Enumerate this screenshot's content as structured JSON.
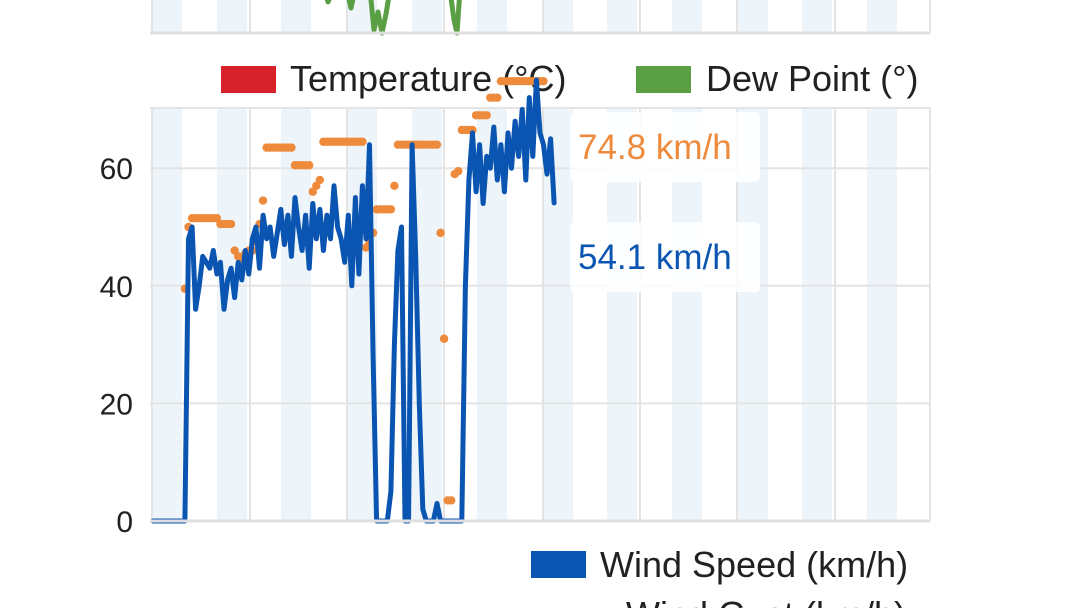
{
  "legend_top": {
    "items": [
      {
        "label": "Temperature (°C)",
        "color": "#d7222c"
      },
      {
        "label": "Dew Point (°)",
        "color": "#5b9f45"
      }
    ]
  },
  "legend_bottom": {
    "items": [
      {
        "label": "Wind Speed (km/h)",
        "color": "#0b55b2"
      },
      {
        "label": "Wind Gust (km/h)",
        "color": "#ee8a3c"
      }
    ]
  },
  "chart_data": {
    "type": "line",
    "ylim": [
      0,
      75
    ],
    "yticks": [
      0,
      20,
      40,
      60
    ],
    "grid": true,
    "legend_placement": "bottom-right",
    "series": [
      {
        "name": "Wind Speed (km/h)",
        "color": "#0b55b2",
        "style": "line",
        "x": [
          0,
          4,
          9,
          10,
          11,
          12,
          13,
          14,
          15,
          16,
          17,
          18,
          19,
          20,
          21,
          22,
          23,
          24,
          25,
          26,
          27,
          28,
          29,
          30,
          31,
          32,
          33,
          34,
          35,
          36,
          37,
          38,
          39,
          40,
          41,
          42,
          43,
          44,
          45,
          46,
          47,
          48,
          49,
          50,
          51,
          52,
          53,
          54,
          55,
          56,
          57,
          58,
          59,
          60,
          61,
          62,
          63,
          64,
          65,
          66,
          67,
          68,
          69,
          70,
          71,
          72,
          73,
          74,
          75,
          76,
          77,
          78,
          79,
          80,
          81,
          82,
          83,
          84,
          85,
          86,
          87,
          88,
          89,
          90,
          91,
          92,
          93,
          94,
          95,
          96,
          97,
          98,
          99,
          100,
          101,
          102,
          103,
          104,
          105,
          106,
          107,
          108,
          109,
          110,
          111,
          112,
          113
        ],
        "values": [
          0,
          0,
          0,
          48,
          50,
          36,
          40,
          45,
          44,
          43,
          46,
          42,
          44,
          36,
          41,
          43,
          38,
          44,
          41,
          46,
          42,
          48,
          50,
          43,
          52,
          48,
          50,
          45,
          49,
          53,
          47,
          52,
          45,
          55,
          50,
          46,
          52,
          43,
          54,
          48,
          53,
          46,
          52,
          48,
          57,
          50,
          48,
          44,
          52,
          40,
          55,
          42,
          57,
          48,
          64,
          28,
          0,
          0,
          0,
          0,
          5,
          30,
          46,
          50,
          0,
          0,
          64,
          45,
          20,
          2,
          0,
          0,
          0,
          3,
          0,
          0,
          0,
          0,
          0,
          0,
          0,
          40,
          58,
          66,
          56,
          64,
          54,
          62,
          60,
          67,
          58,
          64,
          56,
          66,
          60,
          68,
          62,
          70,
          58,
          72,
          62,
          75,
          66,
          64,
          59,
          65,
          54.1
        ],
        "callout": "54.1 km/h"
      },
      {
        "name": "Wind Gust (km/h)",
        "color": "#ee8a3c",
        "style": "dots",
        "x": [
          9,
          10,
          11,
          12,
          13,
          14,
          15,
          16,
          17,
          18,
          19,
          20,
          21,
          22,
          23,
          24,
          25,
          26,
          27,
          28,
          29,
          30,
          31,
          32,
          33,
          34,
          35,
          36,
          37,
          38,
          39,
          40,
          41,
          42,
          43,
          44,
          45,
          46,
          47,
          48,
          49,
          50,
          51,
          52,
          53,
          54,
          55,
          56,
          57,
          58,
          59,
          60,
          61,
          62,
          63,
          64,
          65,
          66,
          67,
          68,
          69,
          70,
          71,
          72,
          73,
          74,
          75,
          76,
          77,
          78,
          79,
          80,
          81,
          82,
          83,
          84,
          85,
          86,
          87,
          88,
          89,
          90,
          91,
          92,
          93,
          94,
          95,
          96,
          97,
          98,
          99,
          100,
          101,
          102,
          103,
          104,
          105,
          106,
          107,
          108,
          109,
          110
        ],
        "values": [
          39.5,
          50,
          51.5,
          51.5,
          51.5,
          51.5,
          51.5,
          51.5,
          51.5,
          51.5,
          50.5,
          50.5,
          50.5,
          50.5,
          46,
          45,
          44.5,
          45.5,
          46,
          46,
          47.5,
          50.5,
          54.5,
          63.5,
          63.5,
          63.5,
          63.5,
          63.5,
          63.5,
          63.5,
          63.5,
          60.5,
          60.5,
          60.5,
          60.5,
          60.5,
          56,
          57,
          58,
          64.5,
          64.5,
          64.5,
          64.5,
          64.5,
          64.5,
          64.5,
          64.5,
          64.5,
          64.5,
          64.5,
          64.5,
          46.5,
          47.5,
          49,
          53,
          53,
          53,
          53,
          53,
          57,
          64,
          64,
          64,
          64,
          64,
          64,
          64,
          64,
          64,
          64,
          64,
          64,
          49,
          31,
          3.5,
          3.5,
          59,
          59.5,
          66.5,
          66.5,
          66.5,
          66.5,
          69,
          69,
          69,
          69,
          72,
          72,
          72,
          74.8,
          74.8,
          74.8,
          74.8,
          74.8,
          74.8,
          74.8,
          74.8,
          74.8,
          74.8,
          74.8,
          74.8,
          74.8
        ],
        "callout": "74.8 km/h"
      }
    ],
    "top_panel_series": [
      {
        "name": "Dew Point (°)",
        "color": "#5b9f45"
      }
    ]
  }
}
